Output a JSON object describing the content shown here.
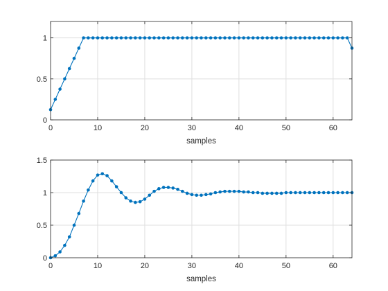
{
  "chart_data": [
    {
      "type": "line",
      "xlabel": "samples",
      "xlim": [
        0,
        64
      ],
      "ylim": [
        0,
        1.2
      ],
      "xticks": [
        0,
        10,
        20,
        30,
        40,
        50,
        60
      ],
      "yticks": [
        0,
        0.5,
        1
      ],
      "grid": true,
      "series": [
        {
          "color": "#0072BD",
          "marker": "dot",
          "x": [
            0,
            1,
            2,
            3,
            4,
            5,
            6,
            7,
            8,
            9,
            10,
            11,
            12,
            13,
            14,
            15,
            16,
            17,
            18,
            19,
            20,
            21,
            22,
            23,
            24,
            25,
            26,
            27,
            28,
            29,
            30,
            31,
            32,
            33,
            34,
            35,
            36,
            37,
            38,
            39,
            40,
            41,
            42,
            43,
            44,
            45,
            46,
            47,
            48,
            49,
            50,
            51,
            52,
            53,
            54,
            55,
            56,
            57,
            58,
            59,
            60,
            61,
            62,
            63,
            64
          ],
          "y": [
            0.125,
            0.25,
            0.375,
            0.5,
            0.625,
            0.75,
            0.875,
            1,
            1,
            1,
            1,
            1,
            1,
            1,
            1,
            1,
            1,
            1,
            1,
            1,
            1,
            1,
            1,
            1,
            1,
            1,
            1,
            1,
            1,
            1,
            1,
            1,
            1,
            1,
            1,
            1,
            1,
            1,
            1,
            1,
            1,
            1,
            1,
            1,
            1,
            1,
            1,
            1,
            1,
            1,
            1,
            1,
            1,
            1,
            1,
            1,
            1,
            1,
            1,
            1,
            1,
            1,
            1,
            1,
            0.875
          ]
        }
      ]
    },
    {
      "type": "line",
      "xlabel": "samples",
      "xlim": [
        0,
        64
      ],
      "ylim": [
        0,
        1.5
      ],
      "xticks": [
        0,
        10,
        20,
        30,
        40,
        50,
        60
      ],
      "yticks": [
        0,
        0.5,
        1,
        1.5
      ],
      "grid": true,
      "series": [
        {
          "color": "#0072BD",
          "marker": "dot",
          "x": [
            0,
            1,
            2,
            3,
            4,
            5,
            6,
            7,
            8,
            9,
            10,
            11,
            12,
            13,
            14,
            15,
            16,
            17,
            18,
            19,
            20,
            21,
            22,
            23,
            24,
            25,
            26,
            27,
            28,
            29,
            30,
            31,
            32,
            33,
            34,
            35,
            36,
            37,
            38,
            39,
            40,
            41,
            42,
            43,
            44,
            45,
            46,
            47,
            48,
            49,
            50,
            51,
            52,
            53,
            54,
            55,
            56,
            57,
            58,
            59,
            60,
            61,
            62,
            63,
            64
          ],
          "y": [
            0,
            0.03,
            0.09,
            0.19,
            0.32,
            0.5,
            0.68,
            0.87,
            1.04,
            1.18,
            1.27,
            1.29,
            1.26,
            1.18,
            1.09,
            1.0,
            0.92,
            0.87,
            0.85,
            0.86,
            0.9,
            0.96,
            1.02,
            1.06,
            1.08,
            1.08,
            1.07,
            1.05,
            1.02,
            0.99,
            0.97,
            0.96,
            0.96,
            0.97,
            0.98,
            1.0,
            1.01,
            1.02,
            1.02,
            1.02,
            1.02,
            1.01,
            1.01,
            1.0,
            1.0,
            0.99,
            0.99,
            0.99,
            0.99,
            0.99,
            1.0,
            1.0,
            1.0,
            1.0,
            1.0,
            1.0,
            1.0,
            1.0,
            1.0,
            1.0,
            1.0,
            1.0,
            1.0,
            1.0,
            1.0
          ]
        }
      ]
    }
  ]
}
